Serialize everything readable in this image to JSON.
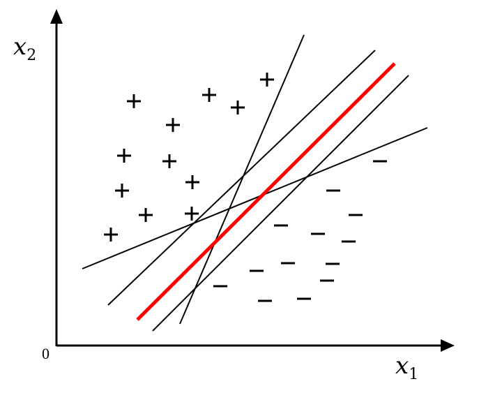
{
  "axes": {
    "x_label": {
      "base": "x",
      "sub": "1"
    },
    "y_label": {
      "base": "x",
      "sub": "2"
    },
    "origin_label": "0"
  },
  "classes": {
    "positive_symbol": "+",
    "negative_symbol": "−"
  },
  "colors": {
    "axes": "#000000",
    "candidate_lines": "#000000",
    "optimal_line": "#ff0000"
  }
}
